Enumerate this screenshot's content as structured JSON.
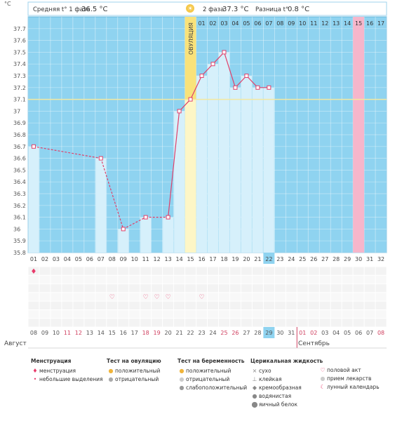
{
  "header": {
    "phase1_label": "Средняя t° 1 фаза",
    "phase1_value": "36.5 °C",
    "phase2_label": "2 фаза",
    "phase2_value": "37.3 °C",
    "diff_label": "Разница t°",
    "diff_value": "0.8 °C",
    "sun_glyph": "☀"
  },
  "ovulation_label": "ОВУЛЯЦИЯ",
  "months": {
    "start": "Август",
    "end": "Сентябрь"
  },
  "legend": {
    "menstruation": {
      "title": "Менструация",
      "items": [
        "менструация",
        "небольшие выделения"
      ]
    },
    "ovulation_test": {
      "title": "Тест на овуляцию",
      "items": [
        "положительный",
        "отрицательный"
      ]
    },
    "pregnancy_test": {
      "title": "Тест на беременность",
      "items": [
        "положительный",
        "отрицательный",
        "слабоположительный"
      ]
    },
    "cervical": {
      "title": "Церикальная жидкость",
      "items": [
        "сухо",
        "клейкая",
        "кремообразная",
        "водянистая",
        "яичный белок"
      ]
    },
    "other": {
      "items": [
        "половой акт",
        "прием лекарств",
        "лунный календарь"
      ]
    }
  },
  "chart_data": {
    "type": "line",
    "ylabel": "°C",
    "ylim": [
      35.8,
      37.8
    ],
    "y_ticks": [
      "35.8",
      "35.9",
      "36",
      "36.1",
      "36.2",
      "36.3",
      "36.4",
      "36.5",
      "36.6",
      "36.7",
      "36.8",
      "36.9",
      "37",
      "37.1",
      "37.2",
      "37.3",
      "37.4",
      "37.5",
      "37.6",
      "37.7"
    ],
    "cycle_days": [
      "01",
      "02",
      "03",
      "04",
      "05",
      "06",
      "07",
      "08",
      "09",
      "10",
      "11",
      "12",
      "13",
      "14",
      "15",
      "16",
      "17",
      "18",
      "19",
      "20",
      "21",
      "22",
      "23",
      "24",
      "25",
      "26",
      "27",
      "28",
      "29",
      "30",
      "31",
      "32"
    ],
    "dates": [
      "08",
      "09",
      "10",
      "11",
      "12",
      "13",
      "14",
      "15",
      "16",
      "17",
      "18",
      "19",
      "20",
      "21",
      "22",
      "23",
      "24",
      "25",
      "26",
      "27",
      "28",
      "29",
      "30",
      "31",
      "01",
      "02",
      "03",
      "04",
      "05",
      "06",
      "07",
      "08"
    ],
    "date_colors": [
      "#555",
      "#555",
      "#555",
      "#d04060",
      "#d04060",
      "#555",
      "#555",
      "#555",
      "#555",
      "#555",
      "#d04060",
      "#d04060",
      "#555",
      "#555",
      "#555",
      "#555",
      "#555",
      "#d04060",
      "#d04060",
      "#555",
      "#555",
      "#555",
      "#555",
      "#555",
      "#d04060",
      "#d04060",
      "#555",
      "#555",
      "#555",
      "#555",
      "#555",
      "#d04060"
    ],
    "temperatures": [
      36.7,
      null,
      null,
      null,
      null,
      null,
      36.6,
      null,
      36.0,
      null,
      36.1,
      null,
      36.1,
      37.0,
      37.1,
      37.3,
      37.4,
      37.5,
      37.2,
      37.3,
      37.2,
      37.2,
      null,
      null,
      null,
      null,
      null,
      null,
      null,
      null,
      null,
      null
    ],
    "coverline": 37.1,
    "ovulation_day": "15",
    "highlight_day": "22",
    "highlight_date": "29",
    "pink_day": "30",
    "phase2_top_labels": [
      "01",
      "02",
      "03",
      "04",
      "05",
      "06",
      "07",
      "08",
      "09",
      "10",
      "11",
      "12",
      "13",
      "14",
      "15",
      "16",
      "17"
    ],
    "menstruation_days": [
      "01"
    ],
    "intercourse_days": [
      "08",
      "11",
      "12",
      "13",
      "16"
    ]
  }
}
